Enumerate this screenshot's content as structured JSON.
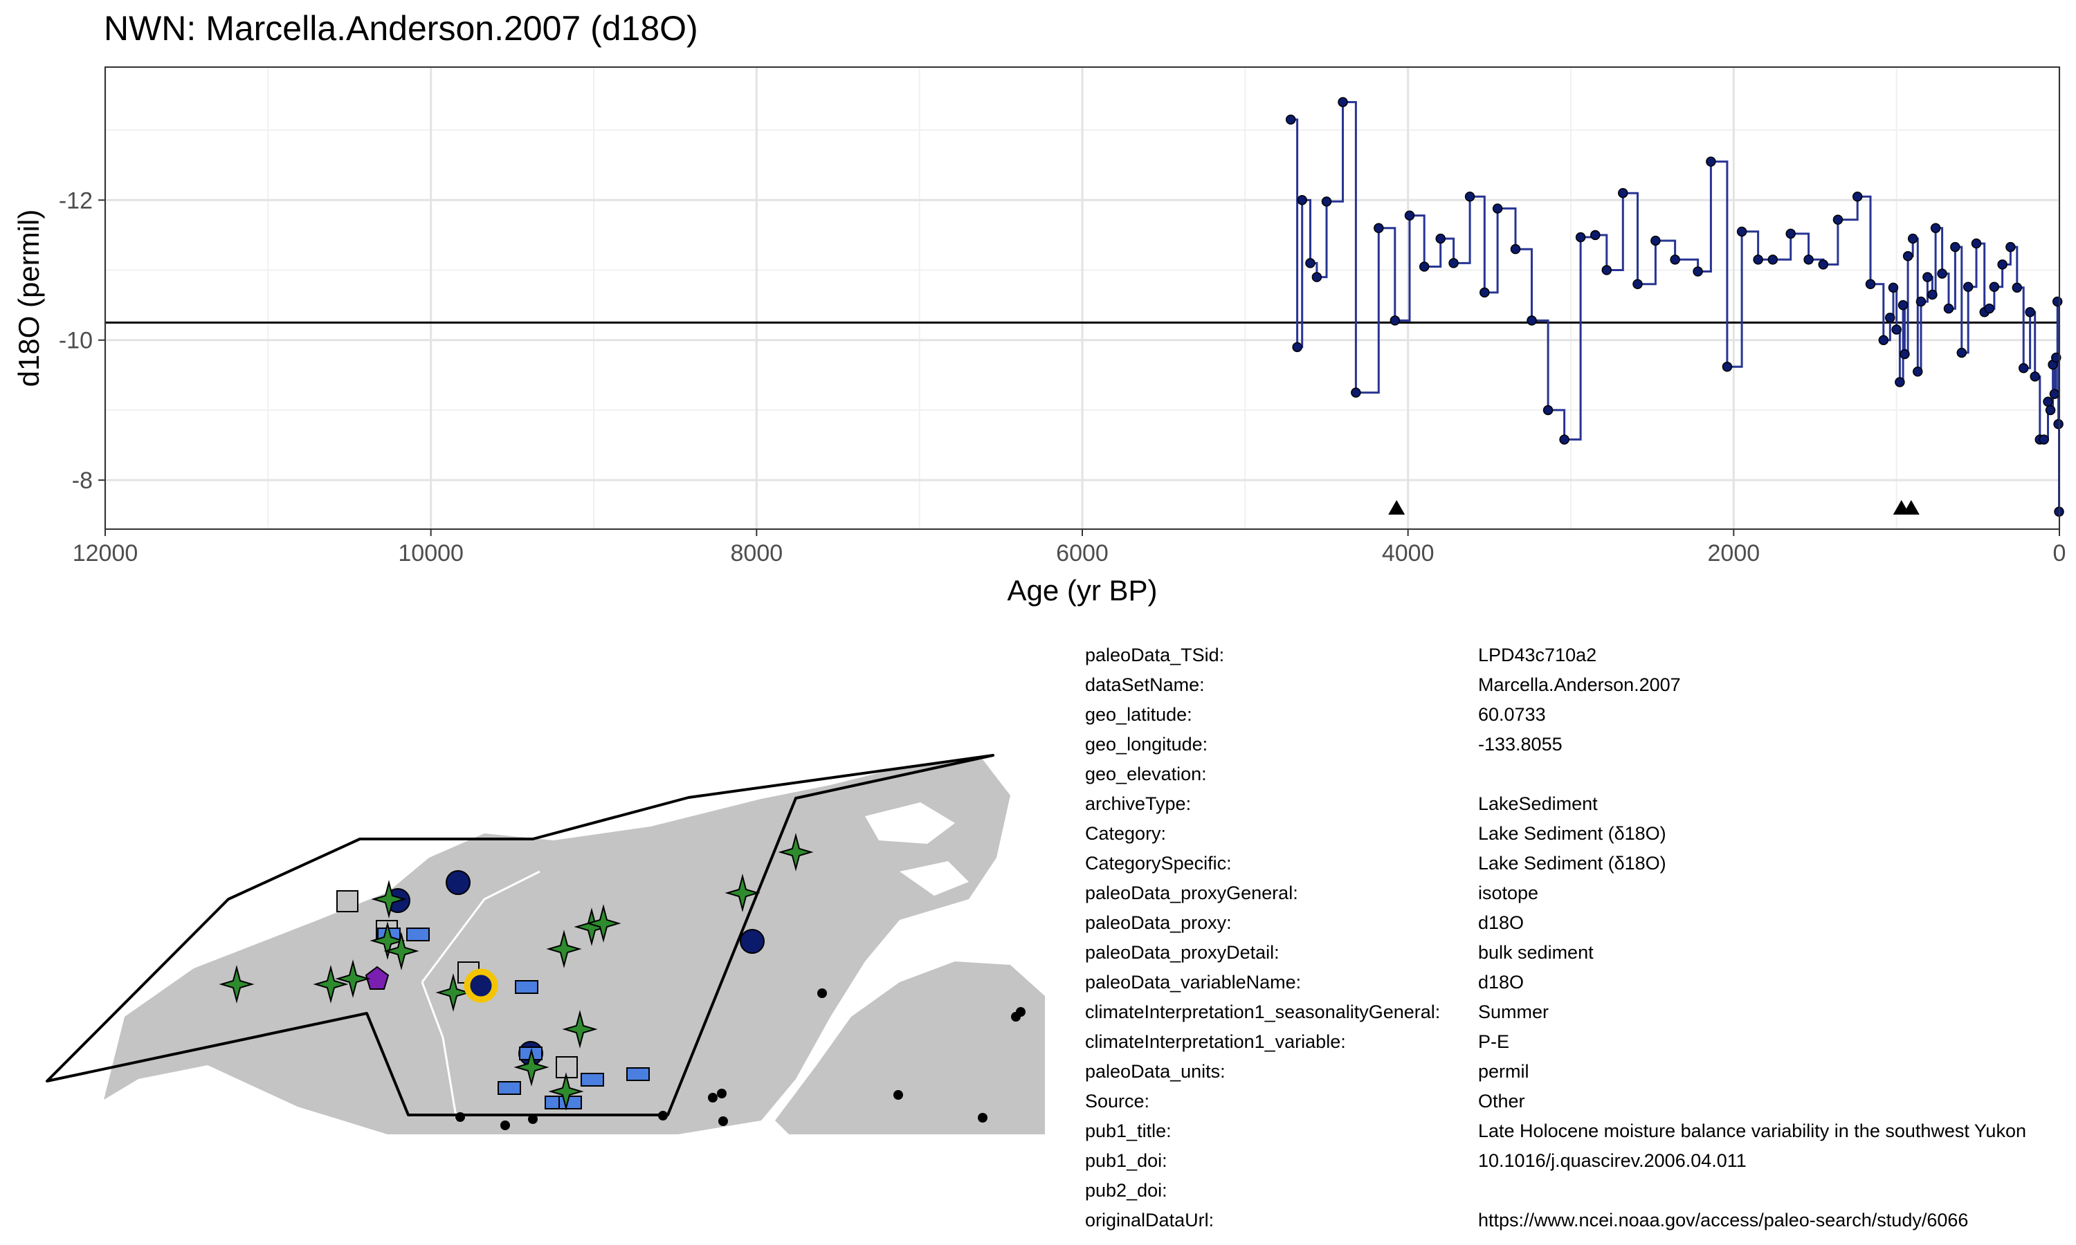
{
  "chart_data": {
    "type": "line",
    "title": "NWN: Marcella.Anderson.2007 (d18O)",
    "xlabel": "Age (yr BP)",
    "ylabel": "d18O (permil)",
    "x_reversed": true,
    "y_reversed": true,
    "xlim": [
      12000,
      0
    ],
    "ylim": [
      -7.3,
      -13.9
    ],
    "x_ticks": [
      12000,
      10000,
      8000,
      6000,
      4000,
      2000,
      0
    ],
    "y_ticks": [
      -12,
      -10,
      -8
    ],
    "grid": true,
    "line_style": "step",
    "reference_line_y": -10.25,
    "marker_triangles_x": [
      4070,
      970,
      910
    ],
    "series": [
      {
        "color": "#283593",
        "point_color": "#0b1a6b",
        "x": [
          4720,
          4680,
          4650,
          4600,
          4560,
          4500,
          4400,
          4320,
          4180,
          4080,
          3990,
          3900,
          3800,
          3720,
          3620,
          3530,
          3450,
          3340,
          3240,
          3140,
          3040,
          2940,
          2850,
          2780,
          2680,
          2590,
          2480,
          2360,
          2220,
          2140,
          2040,
          1950,
          1850,
          1760,
          1650,
          1540,
          1450,
          1360,
          1240,
          1160,
          1080,
          1040,
          1020,
          1000,
          980,
          960,
          950,
          930,
          900,
          870,
          850,
          810,
          780,
          760,
          720,
          680,
          640,
          600,
          560,
          510,
          460,
          430,
          400,
          350,
          300,
          260,
          220,
          180,
          150,
          120,
          95,
          70,
          55,
          40,
          30,
          20,
          12,
          6,
          2
        ],
        "y": [
          -13.15,
          -9.9,
          -12.0,
          -11.1,
          -10.9,
          -11.98,
          -13.4,
          -9.25,
          -11.6,
          -10.28,
          -11.78,
          -11.05,
          -11.45,
          -11.1,
          -12.05,
          -10.68,
          -11.88,
          -11.3,
          -10.28,
          -9.0,
          -8.58,
          -11.47,
          -11.5,
          -11.0,
          -12.1,
          -10.8,
          -11.42,
          -11.15,
          -10.98,
          -12.55,
          -9.62,
          -11.55,
          -11.15,
          -11.15,
          -11.52,
          -11.15,
          -11.08,
          -11.72,
          -12.05,
          -10.8,
          -10.0,
          -10.32,
          -10.75,
          -10.15,
          -9.4,
          -10.5,
          -9.8,
          -11.2,
          -11.45,
          -9.55,
          -10.55,
          -10.9,
          -10.65,
          -11.6,
          -10.95,
          -10.45,
          -11.33,
          -9.82,
          -10.76,
          -11.38,
          -10.4,
          -10.45,
          -10.76,
          -11.08,
          -11.33,
          -10.75,
          -9.6,
          -10.4,
          -9.48,
          -8.58,
          -8.58,
          -9.12,
          -9.0,
          -9.65,
          -9.23,
          -9.75,
          -10.55,
          -8.8,
          -7.55
        ]
      }
    ]
  },
  "map": {
    "land_color": "#c4c4c4",
    "region_outline_color": "#000000",
    "highlight_color": "#f5c400"
  },
  "metadata": [
    {
      "key": "paleoData_TSid:",
      "value": "LPD43c710a2"
    },
    {
      "key": "dataSetName:",
      "value": "Marcella.Anderson.2007"
    },
    {
      "key": "geo_latitude:",
      "value": "60.0733"
    },
    {
      "key": "geo_longitude:",
      "value": "-133.8055"
    },
    {
      "key": "geo_elevation:",
      "value": ""
    },
    {
      "key": "archiveType:",
      "value": "LakeSediment"
    },
    {
      "key": "Category:",
      "value": "Lake Sediment (δ18O)"
    },
    {
      "key": "CategorySpecific:",
      "value": "Lake Sediment (δ18O)"
    },
    {
      "key": "paleoData_proxyGeneral:",
      "value": "isotope"
    },
    {
      "key": "paleoData_proxy:",
      "value": "d18O"
    },
    {
      "key": "paleoData_proxyDetail:",
      "value": "bulk sediment"
    },
    {
      "key": "paleoData_variableName:",
      "value": "d18O"
    },
    {
      "key": "climateInterpretation1_seasonalityGeneral:",
      "value": "Summer"
    },
    {
      "key": "climateInterpretation1_variable:",
      "value": "P-E"
    },
    {
      "key": "paleoData_units:",
      "value": "permil"
    },
    {
      "key": "Source:",
      "value": "Other"
    },
    {
      "key": "pub1_title:",
      "value": "Late Holocene moisture balance variability in the southwest Yukon"
    },
    {
      "key": "pub1_doi:",
      "value": "10.1016/j.quascirev.2006.04.011"
    },
    {
      "key": "pub2_doi:",
      "value": ""
    },
    {
      "key": "originalDataUrl:",
      "value": "https://www.ncei.noaa.gov/access/paleo-search/study/6066"
    }
  ]
}
